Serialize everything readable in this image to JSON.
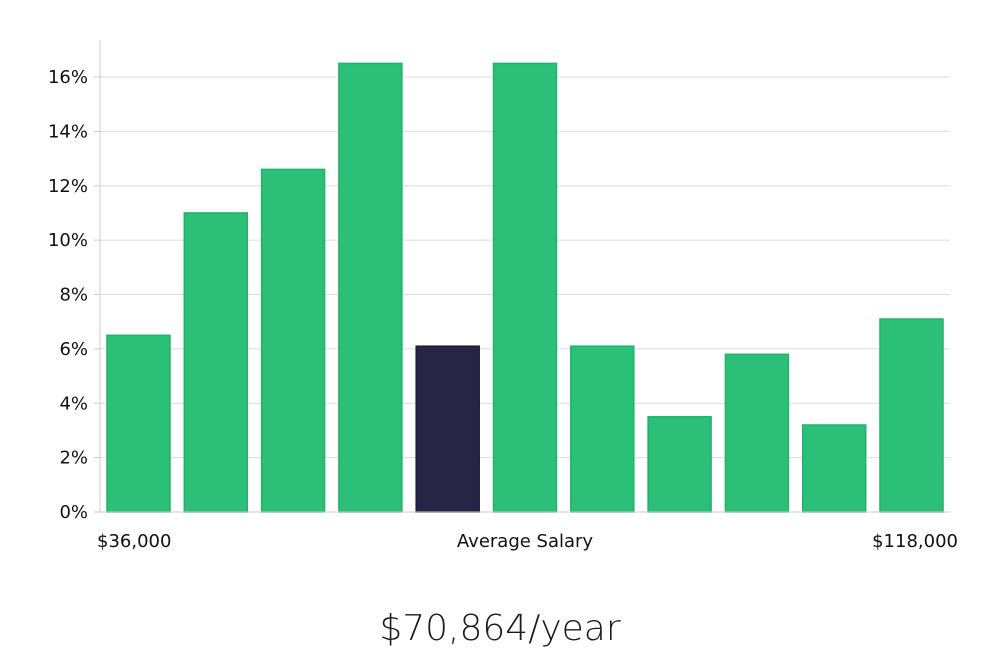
{
  "chart_data": {
    "type": "bar",
    "title": "",
    "xlabel": "Average Salary",
    "ylabel": "",
    "ylim": [
      0,
      17
    ],
    "yticks": [
      0,
      2,
      4,
      6,
      8,
      10,
      12,
      14,
      16
    ],
    "ytick_suffix": "%",
    "values": [
      6.5,
      11.0,
      12.6,
      16.5,
      6.1,
      16.5,
      6.1,
      3.5,
      5.8,
      3.2,
      7.1
    ],
    "highlight_index": 4,
    "range_min_label": "$36,000",
    "range_max_label": "$118,000",
    "grid": true
  },
  "summary": {
    "salary": "$70,864/year"
  },
  "colors": {
    "bar": "#2bbf78",
    "bar_border": "#21b36d",
    "highlight": "#282446",
    "grid": "#dcdcdc",
    "axis": "#cccccc"
  }
}
